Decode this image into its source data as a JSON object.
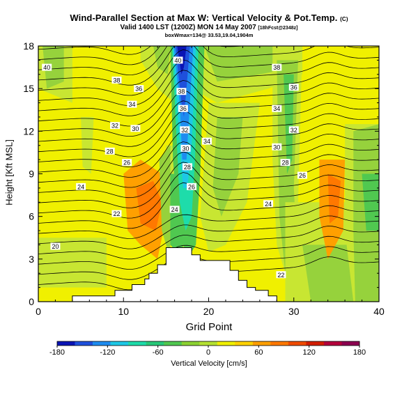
{
  "chart_data": {
    "type": "heatmap",
    "title": "Wind-Parallel Section at Max W: Vertical Velocity & Pot.Temp.",
    "title_mark": "(C)",
    "subtitle": "Valid 1400 LST (1200Z) MON 14 May 2007",
    "subtitle_note": "[18hFcst@2348z]",
    "info_line": "boxWmax=134@ 33.53,19.04,1904m",
    "xlabel": "Grid Point",
    "ylabel": "Height [Kft MSL]",
    "xlim": [
      0,
      40
    ],
    "ylim": [
      0,
      18
    ],
    "x_ticks": [
      "0",
      "10",
      "20",
      "30",
      "40"
    ],
    "y_ticks": [
      "0",
      "3",
      "6",
      "9",
      "12",
      "15",
      "18"
    ],
    "colorbar": {
      "label": "Vertical Velocity [cm/s]",
      "ticks": [
        "-180",
        "-120",
        "-60",
        "0",
        "60",
        "120",
        "180"
      ],
      "range": [
        -180,
        180
      ],
      "colors": [
        "#0a14b4",
        "#1f50dc",
        "#1e8cf0",
        "#1ec8e6",
        "#1edcaa",
        "#28c878",
        "#50c850",
        "#8cd232",
        "#b4e132",
        "#f0f000",
        "#ffd200",
        "#ffa000",
        "#ff7800",
        "#f04b00",
        "#d21e00",
        "#b4003c",
        "#8c0050"
      ]
    },
    "contour_labels": [
      {
        "text": "40",
        "x": 1.0,
        "y": 16.5
      },
      {
        "text": "38",
        "x": 9.2,
        "y": 15.6
      },
      {
        "text": "36",
        "x": 11.8,
        "y": 15.0
      },
      {
        "text": "34",
        "x": 11.0,
        "y": 13.9
      },
      {
        "text": "32",
        "x": 9.0,
        "y": 12.4
      },
      {
        "text": "30",
        "x": 11.4,
        "y": 12.2
      },
      {
        "text": "28",
        "x": 8.4,
        "y": 10.6
      },
      {
        "text": "26",
        "x": 10.4,
        "y": 9.8
      },
      {
        "text": "24",
        "x": 5.0,
        "y": 8.1
      },
      {
        "text": "22",
        "x": 9.2,
        "y": 6.2
      },
      {
        "text": "20",
        "x": 2.0,
        "y": 3.9
      },
      {
        "text": "40",
        "x": 16.4,
        "y": 17.0
      },
      {
        "text": "38",
        "x": 16.8,
        "y": 14.8
      },
      {
        "text": "36",
        "x": 17.0,
        "y": 13.6
      },
      {
        "text": "32",
        "x": 17.2,
        "y": 12.1
      },
      {
        "text": "30",
        "x": 17.3,
        "y": 10.8
      },
      {
        "text": "28",
        "x": 17.5,
        "y": 9.5
      },
      {
        "text": "26",
        "x": 18.0,
        "y": 8.1
      },
      {
        "text": "24",
        "x": 16.0,
        "y": 6.5
      },
      {
        "text": "34",
        "x": 19.8,
        "y": 11.3
      },
      {
        "text": "38",
        "x": 28.0,
        "y": 16.5
      },
      {
        "text": "36",
        "x": 30.0,
        "y": 15.1
      },
      {
        "text": "34",
        "x": 28.0,
        "y": 13.6
      },
      {
        "text": "32",
        "x": 30.0,
        "y": 12.1
      },
      {
        "text": "30",
        "x": 28.0,
        "y": 10.9
      },
      {
        "text": "28",
        "x": 29.0,
        "y": 9.8
      },
      {
        "text": "26",
        "x": 31.0,
        "y": 8.9
      },
      {
        "text": "24",
        "x": 27.0,
        "y": 6.9
      },
      {
        "text": "22",
        "x": 28.5,
        "y": 1.9
      }
    ]
  }
}
